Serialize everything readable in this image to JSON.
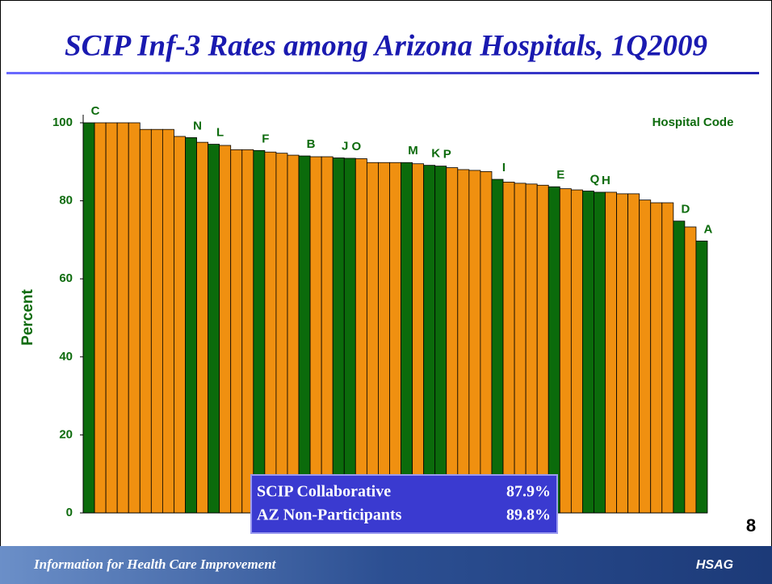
{
  "chart_data": {
    "type": "bar",
    "title": "SCIP Inf-3 Rates among Arizona Hospitals, 1Q2009",
    "y_label": "Percent",
    "legend_title": "Hospital Code",
    "categories": [
      "C",
      null,
      null,
      null,
      null,
      null,
      null,
      null,
      null,
      "N",
      null,
      "L",
      null,
      null,
      null,
      "F",
      null,
      null,
      null,
      "B",
      null,
      null,
      "J",
      "O",
      null,
      null,
      null,
      null,
      "M",
      null,
      "K",
      "P",
      null,
      null,
      null,
      null,
      "I",
      null,
      null,
      null,
      null,
      "E",
      null,
      null,
      "Q",
      "H",
      null,
      null,
      null,
      null,
      null,
      null,
      "D",
      null,
      "A"
    ],
    "values": [
      100,
      100,
      100,
      100,
      100,
      98.3,
      98.3,
      98.3,
      96.5,
      96.2,
      95,
      94.5,
      94.2,
      93.1,
      93.1,
      92.9,
      92.5,
      92.2,
      91.7,
      91.5,
      91.3,
      91.3,
      91,
      90.9,
      90.8,
      89.8,
      89.8,
      89.8,
      89.8,
      89.5,
      89.1,
      88.9,
      88.5,
      88,
      87.8,
      87.5,
      85.5,
      84.8,
      84.5,
      84.3,
      84,
      83.6,
      83.1,
      82.8,
      82.5,
      82.2,
      82.2,
      81.8,
      81.8,
      80.2,
      79.5,
      79.5,
      74.8,
      73.3,
      69.7
    ],
    "colors": [
      "#0b6b0b",
      "#f09010",
      "#f09010",
      "#f09010",
      "#f09010",
      "#f09010",
      "#f09010",
      "#f09010",
      "#f09010",
      "#0b6b0b",
      "#f09010",
      "#0b6b0b",
      "#f09010",
      "#f09010",
      "#f09010",
      "#0b6b0b",
      "#f09010",
      "#f09010",
      "#f09010",
      "#0b6b0b",
      "#f09010",
      "#f09010",
      "#0b6b0b",
      "#0b6b0b",
      "#f09010",
      "#f09010",
      "#f09010",
      "#f09010",
      "#0b6b0b",
      "#f09010",
      "#0b6b0b",
      "#0b6b0b",
      "#f09010",
      "#f09010",
      "#f09010",
      "#f09010",
      "#0b6b0b",
      "#f09010",
      "#f09010",
      "#f09010",
      "#f09010",
      "#0b6b0b",
      "#f09010",
      "#f09010",
      "#0b6b0b",
      "#0b6b0b",
      "#f09010",
      "#f09010",
      "#f09010",
      "#f09010",
      "#f09010",
      "#f09010",
      "#0b6b0b",
      "#f09010",
      "#0b6b0b"
    ],
    "ylim": [
      0,
      100
    ],
    "yticks": [
      0,
      20,
      40,
      60,
      80,
      100
    ],
    "summary": [
      {
        "name": "SCIP Collaborative",
        "value": "87.9%"
      },
      {
        "name": "AZ Non-Participants",
        "value": "89.8%"
      }
    ]
  },
  "slide": {
    "page_number": "8",
    "footer": "Information for Health Care Improvement",
    "logo": "HSAG"
  }
}
